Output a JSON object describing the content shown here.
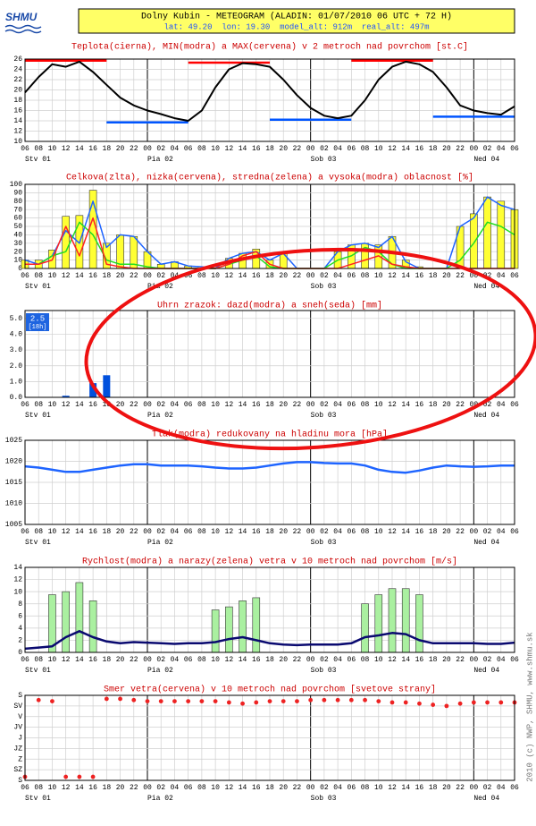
{
  "header": {
    "logo": "SHMU",
    "title": "Dolny Kubin - METEOGRAM (ALADIN: 01/07/2010 06 UTC + 72 H)",
    "subtitle": "lat: 49.20  lon: 19.30  model_alt: 912m  real_alt: 497m"
  },
  "credit": "2010 (c) NWP, SHMU, www.shmu.sk",
  "x_axis": {
    "categories": [
      "06",
      "08",
      "10",
      "12",
      "14",
      "16",
      "18",
      "20",
      "22",
      "00",
      "02",
      "04",
      "06",
      "08",
      "10",
      "12",
      "14",
      "16",
      "18",
      "20",
      "22",
      "00",
      "02",
      "04",
      "06",
      "08",
      "10",
      "12",
      "14",
      "16",
      "18",
      "20",
      "22",
      "00",
      "02",
      "04",
      "06"
    ],
    "days": [
      "Stv 01",
      null,
      null,
      null,
      null,
      null,
      null,
      null,
      null,
      "Pia 02",
      null,
      null,
      null,
      null,
      null,
      null,
      null,
      null,
      null,
      null,
      null,
      "Sob 03",
      null,
      null,
      null,
      null,
      null,
      null,
      null,
      null,
      null,
      null,
      null,
      "Ned 04",
      null,
      null,
      null
    ]
  },
  "chart_data": [
    {
      "type": "line",
      "title": "Teplota(cierna), MIN(modra) a MAX(cervena) v 2 metroch nad povrchom [st.C]",
      "ylim": [
        10,
        26
      ],
      "yticks": [
        10,
        12,
        14,
        16,
        18,
        20,
        22,
        24,
        26
      ],
      "grid": true,
      "series": [
        {
          "color": "#ff0000",
          "mark": "line",
          "values": [
            25.7,
            25.7,
            25.7,
            25.7,
            25.7,
            25.7,
            25.7,
            null,
            null,
            null,
            null,
            null,
            25.3,
            25.3,
            25.3,
            25.3,
            25.3,
            25.3,
            25.3,
            null,
            null,
            null,
            null,
            null,
            25.7,
            25.7,
            25.7,
            25.7,
            25.7,
            25.7,
            25.7,
            null,
            null,
            null,
            null,
            null,
            null
          ]
        },
        {
          "color": "#0055ff",
          "mark": "line",
          "values": [
            null,
            null,
            null,
            null,
            null,
            null,
            13.7,
            13.7,
            13.7,
            13.7,
            13.7,
            13.7,
            13.7,
            null,
            null,
            null,
            null,
            null,
            14.2,
            14.2,
            14.2,
            14.2,
            14.2,
            14.2,
            14.2,
            null,
            null,
            null,
            null,
            null,
            14.8,
            14.8,
            14.8,
            14.8,
            14.8,
            14.8,
            14.8
          ]
        },
        {
          "color": "#000000",
          "mark": "line",
          "values": [
            19.5,
            22.5,
            25,
            24.5,
            25.5,
            23.5,
            21,
            18.5,
            17,
            16,
            15.3,
            14.5,
            14,
            16,
            20.5,
            24,
            25.2,
            25,
            24.5,
            22,
            19,
            16.5,
            15,
            14.5,
            15,
            18,
            22,
            24.5,
            25.5,
            25,
            23.5,
            20.5,
            17,
            16,
            15.5,
            15.2,
            16.8
          ]
        }
      ]
    },
    {
      "type": "combo",
      "title": "Celkova(zlta), nizka(cervena), stredna(zelena) a vysoka(modra) oblacnost [%]",
      "ylim": [
        0,
        100
      ],
      "yticks": [
        0,
        10,
        20,
        30,
        40,
        50,
        60,
        70,
        80,
        90,
        100
      ],
      "grid": true,
      "series": [
        {
          "color": "#ffff33",
          "mark": "bar",
          "values": [
            10,
            10,
            22,
            62,
            63,
            93,
            30,
            40,
            38,
            20,
            5,
            8,
            3,
            2,
            0,
            12,
            18,
            23,
            10,
            18,
            0,
            0,
            0,
            20,
            28,
            30,
            28,
            38,
            10,
            2,
            0,
            0,
            50,
            65,
            85,
            80,
            70
          ]
        },
        {
          "color": "#1e64ff",
          "mark": "line",
          "values": [
            10,
            5,
            15,
            45,
            30,
            80,
            25,
            40,
            38,
            20,
            5,
            8,
            3,
            2,
            0,
            12,
            18,
            20,
            10,
            18,
            0,
            0,
            0,
            20,
            28,
            30,
            25,
            38,
            8,
            0,
            0,
            0,
            50,
            60,
            85,
            75,
            70
          ]
        },
        {
          "color": "#22dd22",
          "mark": "line",
          "values": [
            5,
            5,
            15,
            20,
            55,
            40,
            10,
            5,
            5,
            2,
            0,
            0,
            0,
            0,
            0,
            5,
            10,
            15,
            2,
            0,
            0,
            0,
            0,
            10,
            15,
            25,
            20,
            5,
            0,
            0,
            0,
            0,
            10,
            30,
            55,
            50,
            40
          ]
        },
        {
          "color": "#ff2222",
          "mark": "line",
          "values": [
            5,
            5,
            10,
            50,
            15,
            60,
            5,
            2,
            0,
            0,
            0,
            0,
            0,
            0,
            0,
            5,
            15,
            20,
            5,
            0,
            0,
            0,
            0,
            0,
            5,
            10,
            15,
            5,
            2,
            0,
            0,
            0,
            0,
            0,
            0,
            0,
            0
          ]
        }
      ]
    },
    {
      "type": "bar",
      "title": "Uhrn zrazok: dazd(modra) a sneh(seda) [mm]",
      "ylim": [
        0,
        5.5
      ],
      "yticks": [
        {
          "value": 0,
          "label": "0.0"
        },
        {
          "value": 1,
          "label": "1.0"
        },
        {
          "value": 2,
          "label": "2.0"
        },
        {
          "value": 3,
          "label": "3.0"
        },
        {
          "value": 4,
          "label": "4.0"
        },
        {
          "value": 5,
          "label": "5.0"
        }
      ],
      "grid": true,
      "annotations": [
        "2.5",
        "[18h]"
      ],
      "series": [
        {
          "color": "#0050dd",
          "mark": "bar",
          "values": [
            0,
            0,
            0,
            0.1,
            0,
            0.9,
            1.4,
            0,
            0,
            0,
            0,
            0,
            0,
            0,
            0,
            0,
            0,
            0,
            0,
            0,
            0,
            0,
            0,
            0,
            0,
            0,
            0,
            0,
            0,
            0,
            0,
            0,
            0,
            0,
            0,
            0,
            0
          ]
        },
        {
          "color": "#999999",
          "mark": "bar",
          "values": [
            0,
            0,
            0,
            0,
            0,
            0,
            0,
            0,
            0,
            0,
            0,
            0,
            0,
            0,
            0,
            0,
            0,
            0,
            0,
            0,
            0,
            0,
            0,
            0,
            0,
            0,
            0,
            0,
            0,
            0,
            0,
            0,
            0,
            0,
            0,
            0,
            0
          ]
        }
      ]
    },
    {
      "type": "line",
      "title": "Tlak(modra) redukovany na hladinu mora [hPa]",
      "ylim": [
        1005,
        1025
      ],
      "yticks": [
        1005,
        1010,
        1015,
        1020,
        1025
      ],
      "grid": true,
      "series": [
        {
          "color": "#1e64ff",
          "mark": "line",
          "values": [
            1018.8,
            1018.5,
            1018,
            1017.5,
            1017.5,
            1018,
            1018.5,
            1019,
            1019.3,
            1019.3,
            1019,
            1019,
            1019,
            1018.8,
            1018.5,
            1018.3,
            1018.3,
            1018.5,
            1019,
            1019.5,
            1019.8,
            1019.8,
            1019.6,
            1019.5,
            1019.5,
            1019,
            1018,
            1017.5,
            1017.3,
            1017.8,
            1018.5,
            1019,
            1018.8,
            1018.7,
            1018.8,
            1019,
            1019
          ]
        }
      ]
    },
    {
      "type": "combo",
      "title": "Rychlost(modra) a narazy(zelena) vetra v 10 metroch nad povrchom [m/s]",
      "ylim": [
        0,
        14
      ],
      "yticks": [
        0,
        2,
        4,
        6,
        8,
        10,
        12,
        14
      ],
      "grid": true,
      "series": [
        {
          "color": "#aaf0a0",
          "mark": "bar",
          "values": [
            null,
            null,
            9.5,
            10,
            11.5,
            8.5,
            null,
            null,
            null,
            null,
            null,
            null,
            null,
            null,
            7,
            7.5,
            8.5,
            9,
            null,
            null,
            null,
            null,
            null,
            null,
            null,
            8,
            9.5,
            10.5,
            10.5,
            9.5,
            null,
            null,
            null,
            null,
            null,
            null,
            null
          ]
        },
        {
          "color": "#0a0a70",
          "mark": "line",
          "values": [
            0.6,
            0.8,
            1,
            2.5,
            3.5,
            2.5,
            1.8,
            1.5,
            1.7,
            1.6,
            1.5,
            1.4,
            1.5,
            1.5,
            1.7,
            2.2,
            2.5,
            2,
            1.5,
            1.3,
            1.2,
            1.3,
            1.3,
            1.3,
            1.5,
            2.5,
            2.8,
            3.2,
            3,
            2,
            1.5,
            1.5,
            1.5,
            1.5,
            1.4,
            1.4,
            1.6
          ]
        }
      ]
    },
    {
      "type": "scatter",
      "title": "Smer vetra(cervena) v 10 metroch nad povrchom [svetove strany]",
      "ylim": [
        360,
        0
      ],
      "yticks": [
        {
          "value": 0,
          "label": "S"
        },
        {
          "value": 45,
          "label": "SV"
        },
        {
          "value": 90,
          "label": "V"
        },
        {
          "value": 135,
          "label": "JV"
        },
        {
          "value": 180,
          "label": "J"
        },
        {
          "value": 225,
          "label": "JZ"
        },
        {
          "value": 270,
          "label": "Z"
        },
        {
          "value": 315,
          "label": "SZ"
        },
        {
          "value": 360,
          "label": "S"
        }
      ],
      "grid": true,
      "series": [
        {
          "color": "#ee2222",
          "mark": "dot",
          "values": [
            345,
            20,
            25,
            345,
            345,
            345,
            15,
            15,
            20,
            25,
            25,
            25,
            25,
            25,
            25,
            30,
            35,
            30,
            25,
            25,
            25,
            20,
            20,
            20,
            20,
            20,
            25,
            30,
            30,
            35,
            40,
            45,
            35,
            30,
            30,
            30,
            30
          ]
        }
      ]
    }
  ]
}
